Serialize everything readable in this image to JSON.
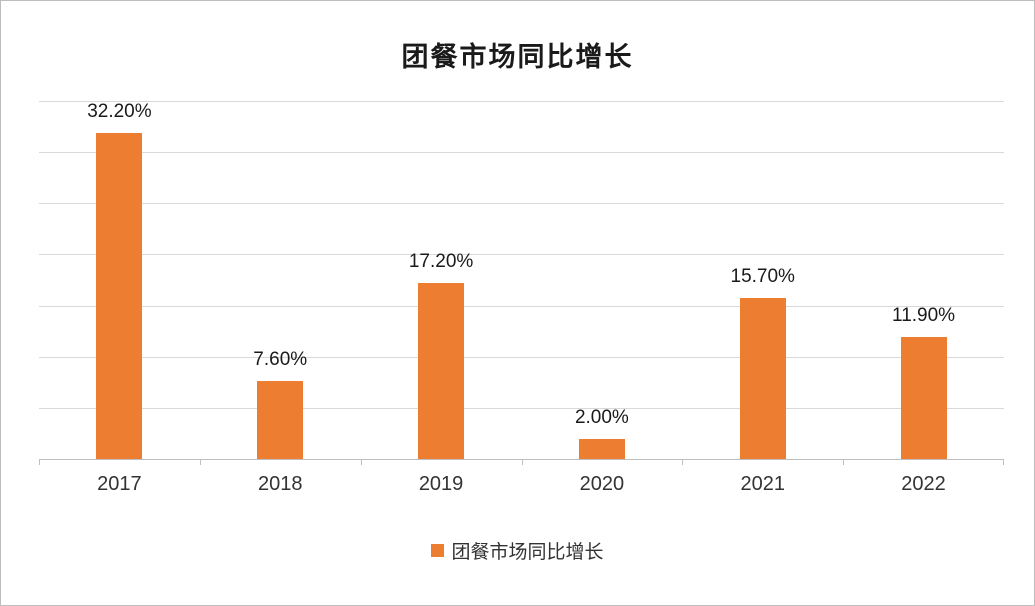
{
  "chart_data": {
    "type": "bar",
    "title": "团餐市场同比增长",
    "categories": [
      "2017",
      "2018",
      "2019",
      "2020",
      "2021",
      "2022"
    ],
    "values": [
      32.2,
      7.6,
      17.2,
      2.0,
      15.7,
      11.9
    ],
    "value_labels": [
      "32.20%",
      "7.60%",
      "17.20%",
      "2.00%",
      "15.70%",
      "11.90%"
    ],
    "legend": "团餐市场同比增长",
    "xlabel": "",
    "ylabel": "",
    "ylim": [
      0,
      35
    ],
    "grid_interval": 5,
    "grid": true,
    "legend_position": "bottom",
    "bar_color": "#ED7D31",
    "gridline_color": "#D9D9D9",
    "axis_color": "#BFBFBF"
  }
}
